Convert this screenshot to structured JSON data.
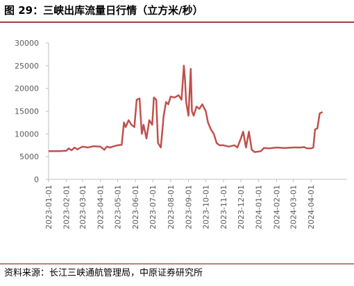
{
  "chart_data": {
    "type": "line",
    "title": "图 29：三峡出库流量日行情（立方米/秒）",
    "source": "资料来源：长江三峡通航管理局，中原证券研究所",
    "x": [
      "2023-01-01",
      "2023-01-20",
      "2023-02-01",
      "2023-02-05",
      "2023-02-10",
      "2023-02-15",
      "2023-02-20",
      "2023-03-01",
      "2023-03-10",
      "2023-03-20",
      "2023-04-01",
      "2023-04-08",
      "2023-04-12",
      "2023-04-18",
      "2023-04-25",
      "2023-05-01",
      "2023-05-08",
      "2023-05-12",
      "2023-05-15",
      "2023-05-20",
      "2023-05-25",
      "2023-05-30",
      "2023-06-03",
      "2023-06-08",
      "2023-06-12",
      "2023-06-15",
      "2023-06-20",
      "2023-06-25",
      "2023-06-30",
      "2023-07-03",
      "2023-07-07",
      "2023-07-10",
      "2023-07-15",
      "2023-07-20",
      "2023-07-24",
      "2023-07-28",
      "2023-08-01",
      "2023-08-08",
      "2023-08-15",
      "2023-08-20",
      "2023-08-24",
      "2023-08-26",
      "2023-08-28",
      "2023-09-01",
      "2023-09-05",
      "2023-09-07",
      "2023-09-10",
      "2023-09-15",
      "2023-09-20",
      "2023-09-25",
      "2023-10-01",
      "2023-10-05",
      "2023-10-10",
      "2023-10-15",
      "2023-10-20",
      "2023-10-25",
      "2023-11-01",
      "2023-11-10",
      "2023-11-20",
      "2023-11-25",
      "2023-12-01",
      "2023-12-05",
      "2023-12-10",
      "2023-12-15",
      "2023-12-20",
      "2023-12-25",
      "2024-01-05",
      "2024-01-10",
      "2024-01-20",
      "2024-02-01",
      "2024-02-15",
      "2024-03-01",
      "2024-03-15",
      "2024-03-20",
      "2024-03-25",
      "2024-04-01",
      "2024-04-05",
      "2024-04-08",
      "2024-04-12",
      "2024-04-16",
      "2024-04-21"
    ],
    "series": [
      {
        "name": "出库流量",
        "color": "#c0504d",
        "values": [
          6200,
          6200,
          6300,
          6800,
          6400,
          7000,
          6600,
          7200,
          7000,
          7300,
          7200,
          6500,
          7200,
          7000,
          7300,
          7500,
          7600,
          12500,
          11500,
          13000,
          12000,
          11500,
          17500,
          17800,
          10000,
          12000,
          9000,
          13000,
          12000,
          18000,
          17500,
          8000,
          7000,
          14000,
          17000,
          16500,
          18200,
          18000,
          18500,
          17500,
          25000,
          22000,
          17000,
          14000,
          24300,
          15000,
          14000,
          16000,
          15500,
          16500,
          15000,
          12500,
          11000,
          10000,
          8000,
          7500,
          7500,
          7200,
          7500,
          7000,
          9000,
          10500,
          7000,
          10500,
          6500,
          6000,
          6200,
          6900,
          6800,
          7000,
          6900,
          7000,
          7000,
          7100,
          6800,
          6800,
          7000,
          11000,
          11200,
          14500,
          14800
        ]
      }
    ],
    "xticks": [
      "2023-01-01",
      "2023-02-01",
      "2023-03-01",
      "2023-04-01",
      "2023-05-01",
      "2023-06-01",
      "2023-07-01",
      "2023-08-01",
      "2023-09-01",
      "2023-10-01",
      "2023-11-01",
      "2023-12-01",
      "2024-01-01",
      "2024-02-01",
      "2024-03-01",
      "2024-04-01"
    ],
    "xlim": [
      "2023-01-01",
      "2024-05-01"
    ],
    "ylim": [
      0,
      30000
    ],
    "yticks": [
      0,
      5000,
      10000,
      15000,
      20000,
      25000,
      30000
    ]
  }
}
